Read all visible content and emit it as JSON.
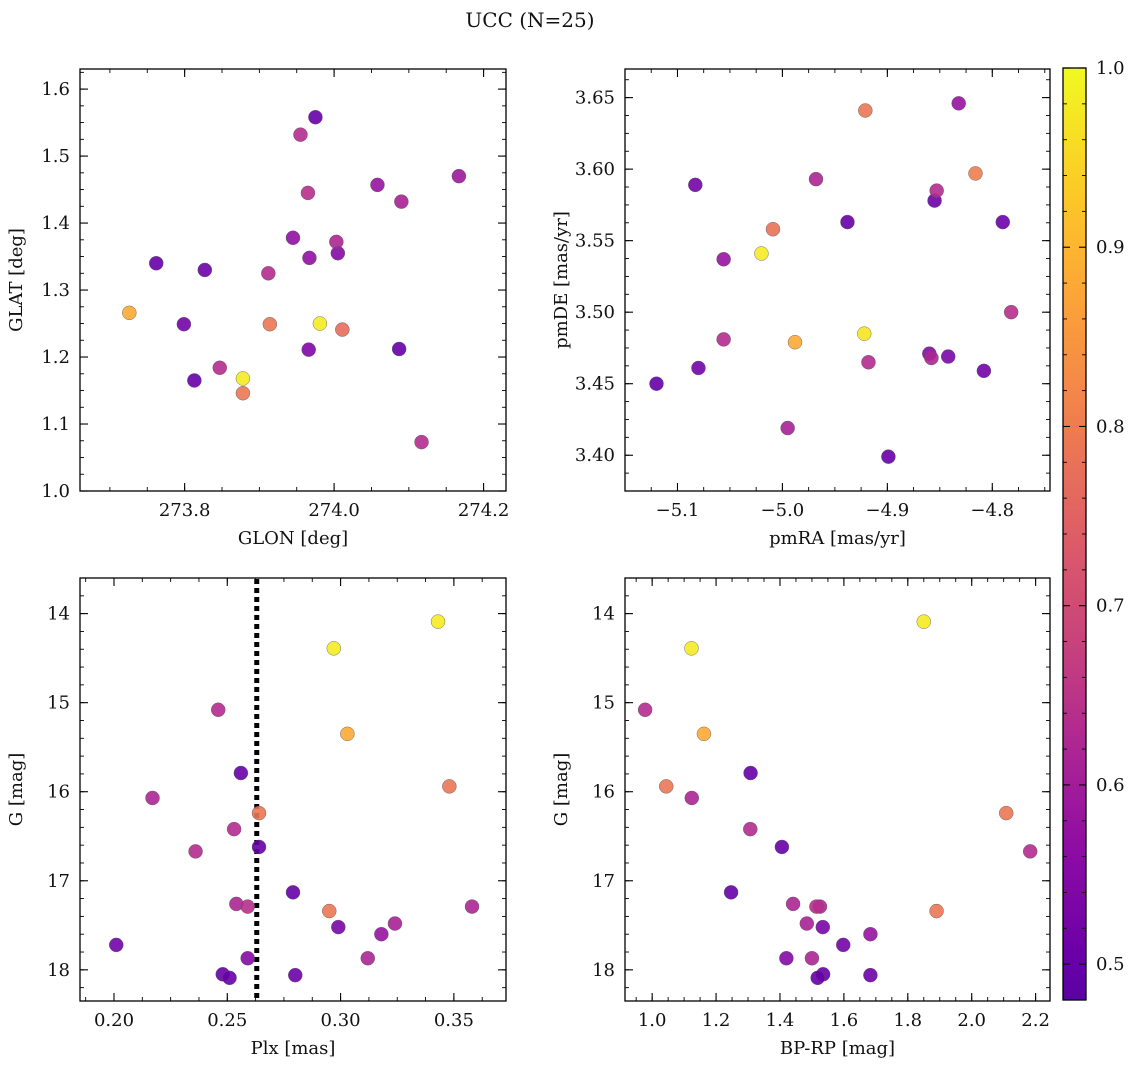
{
  "figure": {
    "title": "UCC (N=25)"
  },
  "colorbar": {
    "min": 0.48,
    "max": 1.0,
    "ticks": [
      0.5,
      0.6,
      0.7,
      0.8,
      0.9,
      1.0
    ],
    "tick_labels": [
      "0.5",
      "0.6",
      "0.7",
      "0.8",
      "0.9",
      "1.0"
    ],
    "colormap": "plasma"
  },
  "chart_data": [
    {
      "type": "scatter",
      "name": "glon-glat",
      "xlabel": "GLON [deg]",
      "ylabel": "GLAT [deg]",
      "xlim": [
        273.66,
        274.23
      ],
      "ylim": [
        1.0,
        1.63
      ],
      "x_ticks": [
        273.8,
        274.0,
        274.2
      ],
      "x_tick_labels": [
        "273.8",
        "274.0",
        "274.2"
      ],
      "y_ticks": [
        1.0,
        1.1,
        1.2,
        1.3,
        1.4,
        1.5,
        1.6
      ],
      "y_tick_labels": [
        "1.0",
        "1.1",
        "1.2",
        "1.3",
        "1.4",
        "1.5",
        "1.6"
      ],
      "invert_y": false,
      "vline": null,
      "points": [
        {
          "x": 273.975,
          "y": 1.558,
          "c": 0.5
        },
        {
          "x": 273.955,
          "y": 1.532,
          "c": 0.63
        },
        {
          "x": 274.167,
          "y": 1.47,
          "c": 0.59
        },
        {
          "x": 274.058,
          "y": 1.457,
          "c": 0.58
        },
        {
          "x": 273.965,
          "y": 1.445,
          "c": 0.64
        },
        {
          "x": 274.09,
          "y": 1.432,
          "c": 0.61
        },
        {
          "x": 273.945,
          "y": 1.378,
          "c": 0.57
        },
        {
          "x": 274.003,
          "y": 1.372,
          "c": 0.62
        },
        {
          "x": 274.005,
          "y": 1.355,
          "c": 0.55
        },
        {
          "x": 273.967,
          "y": 1.348,
          "c": 0.57
        },
        {
          "x": 273.762,
          "y": 1.34,
          "c": 0.5
        },
        {
          "x": 273.827,
          "y": 1.33,
          "c": 0.51
        },
        {
          "x": 273.912,
          "y": 1.325,
          "c": 0.63
        },
        {
          "x": 273.726,
          "y": 1.266,
          "c": 0.88
        },
        {
          "x": 273.981,
          "y": 1.25,
          "c": 0.98
        },
        {
          "x": 273.799,
          "y": 1.249,
          "c": 0.52
        },
        {
          "x": 273.914,
          "y": 1.249,
          "c": 0.79
        },
        {
          "x": 274.011,
          "y": 1.241,
          "c": 0.77
        },
        {
          "x": 274.087,
          "y": 1.212,
          "c": 0.5
        },
        {
          "x": 273.966,
          "y": 1.211,
          "c": 0.54
        },
        {
          "x": 273.847,
          "y": 1.184,
          "c": 0.63
        },
        {
          "x": 273.878,
          "y": 1.168,
          "c": 0.98
        },
        {
          "x": 273.813,
          "y": 1.165,
          "c": 0.5
        },
        {
          "x": 273.878,
          "y": 1.146,
          "c": 0.79
        },
        {
          "x": 274.117,
          "y": 1.073,
          "c": 0.63
        }
      ]
    },
    {
      "type": "scatter",
      "name": "pmra-pmde",
      "xlabel": "pmRA [mas/yr]",
      "ylabel": "pmDE [mas/yr]",
      "xlim": [
        -5.15,
        -4.745
      ],
      "ylim": [
        3.375,
        3.67
      ],
      "x_ticks": [
        -5.1,
        -5.0,
        -4.9,
        -4.8
      ],
      "x_tick_labels": [
        "−5.1",
        "−5.0",
        "−4.9",
        "−4.8"
      ],
      "y_ticks": [
        3.4,
        3.45,
        3.5,
        3.55,
        3.6,
        3.65
      ],
      "y_tick_labels": [
        "3.40",
        "3.45",
        "3.50",
        "3.55",
        "3.60",
        "3.65"
      ],
      "invert_y": false,
      "vline": null,
      "points": [
        {
          "x": -4.832,
          "y": 3.646,
          "c": 0.58
        },
        {
          "x": -4.921,
          "y": 3.641,
          "c": 0.79
        },
        {
          "x": -4.816,
          "y": 3.597,
          "c": 0.8
        },
        {
          "x": -4.968,
          "y": 3.593,
          "c": 0.62
        },
        {
          "x": -5.083,
          "y": 3.589,
          "c": 0.52
        },
        {
          "x": -4.853,
          "y": 3.585,
          "c": 0.63
        },
        {
          "x": -4.855,
          "y": 3.578,
          "c": 0.51
        },
        {
          "x": -4.938,
          "y": 3.563,
          "c": 0.5
        },
        {
          "x": -4.79,
          "y": 3.563,
          "c": 0.51
        },
        {
          "x": -5.009,
          "y": 3.558,
          "c": 0.78
        },
        {
          "x": -5.02,
          "y": 3.541,
          "c": 0.98
        },
        {
          "x": -5.056,
          "y": 3.537,
          "c": 0.58
        },
        {
          "x": -4.782,
          "y": 3.5,
          "c": 0.64
        },
        {
          "x": -4.922,
          "y": 3.485,
          "c": 0.97
        },
        {
          "x": -5.056,
          "y": 3.481,
          "c": 0.63
        },
        {
          "x": -4.988,
          "y": 3.479,
          "c": 0.88
        },
        {
          "x": -4.86,
          "y": 3.471,
          "c": 0.55
        },
        {
          "x": -4.858,
          "y": 3.468,
          "c": 0.62
        },
        {
          "x": -4.842,
          "y": 3.469,
          "c": 0.53
        },
        {
          "x": -4.918,
          "y": 3.465,
          "c": 0.63
        },
        {
          "x": -5.08,
          "y": 3.461,
          "c": 0.52
        },
        {
          "x": -4.808,
          "y": 3.459,
          "c": 0.52
        },
        {
          "x": -5.12,
          "y": 3.45,
          "c": 0.5
        },
        {
          "x": -4.995,
          "y": 3.419,
          "c": 0.61
        },
        {
          "x": -4.899,
          "y": 3.399,
          "c": 0.5
        }
      ]
    },
    {
      "type": "scatter",
      "name": "plx-g",
      "xlabel": "Plx [mas]",
      "ylabel": "G [mag]",
      "xlim": [
        0.185,
        0.373
      ],
      "ylim": [
        13.6,
        18.35
      ],
      "x_ticks": [
        0.2,
        0.25,
        0.3,
        0.35
      ],
      "x_tick_labels": [
        "0.20",
        "0.25",
        "0.30",
        "0.35"
      ],
      "y_ticks": [
        14,
        15,
        16,
        17,
        18
      ],
      "y_tick_labels": [
        "14",
        "15",
        "16",
        "17",
        "18"
      ],
      "invert_y": true,
      "vline": 0.263,
      "points": [
        {
          "x": 0.343,
          "y": 14.09,
          "c": 0.98
        },
        {
          "x": 0.297,
          "y": 14.39,
          "c": 0.98
        },
        {
          "x": 0.246,
          "y": 15.08,
          "c": 0.63
        },
        {
          "x": 0.303,
          "y": 15.35,
          "c": 0.88
        },
        {
          "x": 0.256,
          "y": 15.79,
          "c": 0.5
        },
        {
          "x": 0.348,
          "y": 15.94,
          "c": 0.79
        },
        {
          "x": 0.217,
          "y": 16.07,
          "c": 0.62
        },
        {
          "x": 0.264,
          "y": 16.24,
          "c": 0.79
        },
        {
          "x": 0.253,
          "y": 16.42,
          "c": 0.63
        },
        {
          "x": 0.264,
          "y": 16.62,
          "c": 0.5
        },
        {
          "x": 0.236,
          "y": 16.67,
          "c": 0.63
        },
        {
          "x": 0.279,
          "y": 17.13,
          "c": 0.5
        },
        {
          "x": 0.254,
          "y": 17.26,
          "c": 0.62
        },
        {
          "x": 0.259,
          "y": 17.29,
          "c": 0.64
        },
        {
          "x": 0.358,
          "y": 17.29,
          "c": 0.62
        },
        {
          "x": 0.295,
          "y": 17.34,
          "c": 0.79
        },
        {
          "x": 0.324,
          "y": 17.48,
          "c": 0.61
        },
        {
          "x": 0.299,
          "y": 17.52,
          "c": 0.53
        },
        {
          "x": 0.318,
          "y": 17.6,
          "c": 0.58
        },
        {
          "x": 0.201,
          "y": 17.72,
          "c": 0.52
        },
        {
          "x": 0.259,
          "y": 17.87,
          "c": 0.55
        },
        {
          "x": 0.312,
          "y": 17.87,
          "c": 0.62
        },
        {
          "x": 0.248,
          "y": 18.05,
          "c": 0.5
        },
        {
          "x": 0.28,
          "y": 18.06,
          "c": 0.51
        },
        {
          "x": 0.251,
          "y": 18.09,
          "c": 0.5
        }
      ]
    },
    {
      "type": "scatter",
      "name": "bprp-g",
      "xlabel": "BP-RP [mag]",
      "ylabel": "G [mag]",
      "xlim": [
        0.915,
        2.245
      ],
      "ylim": [
        13.6,
        18.35
      ],
      "x_ticks": [
        1.0,
        1.2,
        1.4,
        1.6,
        1.8,
        2.0,
        2.2
      ],
      "x_tick_labels": [
        "1.0",
        "1.2",
        "1.4",
        "1.6",
        "1.8",
        "2.0",
        "2.2"
      ],
      "y_ticks": [
        14,
        15,
        16,
        17,
        18
      ],
      "y_tick_labels": [
        "14",
        "15",
        "16",
        "17",
        "18"
      ],
      "invert_y": true,
      "vline": null,
      "points": [
        {
          "x": 1.85,
          "y": 14.09,
          "c": 0.98
        },
        {
          "x": 1.123,
          "y": 14.39,
          "c": 0.98
        },
        {
          "x": 0.978,
          "y": 15.08,
          "c": 0.63
        },
        {
          "x": 1.162,
          "y": 15.35,
          "c": 0.88
        },
        {
          "x": 1.308,
          "y": 15.79,
          "c": 0.5
        },
        {
          "x": 1.044,
          "y": 15.94,
          "c": 0.79
        },
        {
          "x": 1.124,
          "y": 16.07,
          "c": 0.62
        },
        {
          "x": 2.108,
          "y": 16.24,
          "c": 0.79
        },
        {
          "x": 1.307,
          "y": 16.42,
          "c": 0.63
        },
        {
          "x": 1.406,
          "y": 16.62,
          "c": 0.5
        },
        {
          "x": 2.183,
          "y": 16.67,
          "c": 0.63
        },
        {
          "x": 1.247,
          "y": 17.13,
          "c": 0.5
        },
        {
          "x": 1.441,
          "y": 17.26,
          "c": 0.62
        },
        {
          "x": 1.514,
          "y": 17.29,
          "c": 0.64
        },
        {
          "x": 1.525,
          "y": 17.29,
          "c": 0.62
        },
        {
          "x": 1.89,
          "y": 17.34,
          "c": 0.79
        },
        {
          "x": 1.484,
          "y": 17.48,
          "c": 0.61
        },
        {
          "x": 1.534,
          "y": 17.52,
          "c": 0.53
        },
        {
          "x": 1.683,
          "y": 17.6,
          "c": 0.58
        },
        {
          "x": 1.598,
          "y": 17.72,
          "c": 0.52
        },
        {
          "x": 1.42,
          "y": 17.87,
          "c": 0.55
        },
        {
          "x": 1.5,
          "y": 17.87,
          "c": 0.62
        },
        {
          "x": 1.535,
          "y": 18.05,
          "c": 0.5
        },
        {
          "x": 1.683,
          "y": 18.06,
          "c": 0.51
        },
        {
          "x": 1.518,
          "y": 18.09,
          "c": 0.5
        }
      ]
    }
  ]
}
